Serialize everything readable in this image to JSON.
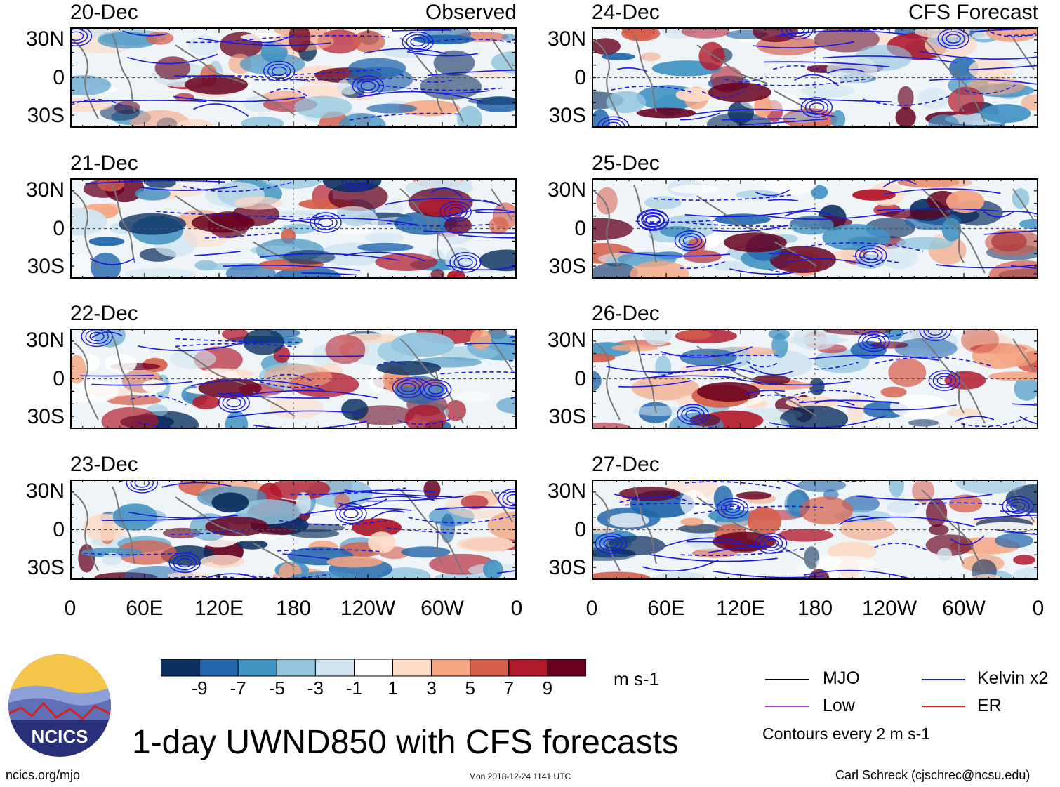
{
  "chart_data": {
    "type": "heatmap",
    "title": "1-day UWND850 with CFS forecasts",
    "variable": "850-hPa zonal wind anomaly",
    "units": "m s-1",
    "panel_headers": {
      "observed": "Observed",
      "forecast": "CFS Forecast"
    },
    "observed_dates": [
      "20-Dec",
      "21-Dec",
      "22-Dec",
      "23-Dec"
    ],
    "forecast_dates": [
      "24-Dec",
      "25-Dec",
      "26-Dec",
      "27-Dec"
    ],
    "lat_ticks": [
      "30N",
      "0",
      "30S"
    ],
    "lon_ticks": [
      "0",
      "60E",
      "120E",
      "180",
      "120W",
      "60W",
      "0"
    ],
    "lat_range": [
      -40,
      40
    ],
    "lon_range": [
      0,
      360
    ],
    "colorbar": {
      "ticks": [
        "-9",
        "-7",
        "-5",
        "-3",
        "-1",
        "1",
        "3",
        "5",
        "7",
        "9"
      ],
      "colors": [
        "#0b2f5f",
        "#2166ac",
        "#4393c3",
        "#92c5de",
        "#d1e5f0",
        "#ffffff",
        "#fddbc7",
        "#f4a582",
        "#d6604d",
        "#b2182b",
        "#67001f"
      ]
    },
    "contour_legend": [
      {
        "label": "MJO",
        "color": "#000000"
      },
      {
        "label": "Kelvin x2",
        "color": "#1a1adc"
      },
      {
        "label": "Low",
        "color": "#a040d0"
      },
      {
        "label": "ER",
        "color": "#e02020"
      }
    ],
    "contour_interval": "Contours every 2 m s-1"
  },
  "footer": {
    "logo_text": "NCICS",
    "site": "ncics.org/mjo",
    "timestamp": "Mon 2018-12-24 1141 UTC",
    "credit": "Carl Schreck (cjschrec@ncsu.edu)"
  }
}
